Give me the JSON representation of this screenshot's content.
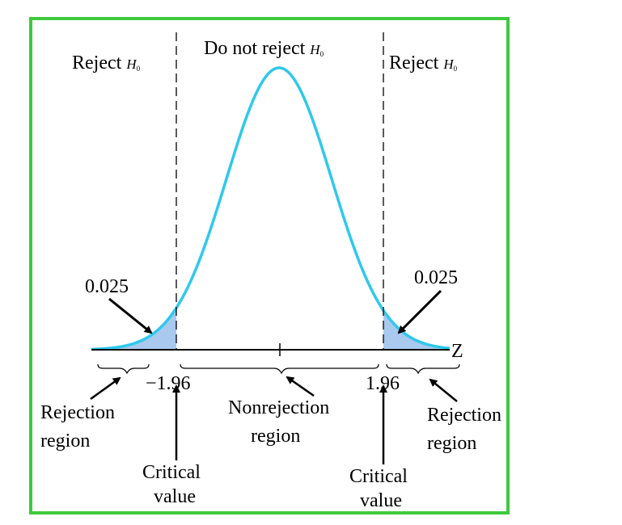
{
  "colors": {
    "frame": "#3ec93e",
    "curve": "#2fc8ec",
    "tail_fill": "#a9c9ee",
    "ink": "#000000"
  },
  "header": {
    "left": {
      "text": "Reject",
      "symbol": "H",
      "subscript": "0"
    },
    "center": {
      "text": "Do not reject",
      "symbol": "H",
      "subscript": "0"
    },
    "right": {
      "text": "Reject",
      "symbol": "H",
      "subscript": "0"
    }
  },
  "tail_area": {
    "left": "0.025",
    "right": "0.025"
  },
  "axis": {
    "label": "Z",
    "left_critical": "−1.96",
    "right_critical": "1.96"
  },
  "regions": {
    "left": {
      "line1": "Rejection",
      "line2": "region"
    },
    "middle": {
      "line1": "Nonrejection",
      "line2": "region"
    },
    "right": {
      "line1": "Rejection",
      "line2": "region"
    }
  },
  "critical_labels": {
    "left": {
      "line1": "Critical",
      "line2": "value"
    },
    "right": {
      "line1": "Critical",
      "line2": "value"
    }
  }
}
